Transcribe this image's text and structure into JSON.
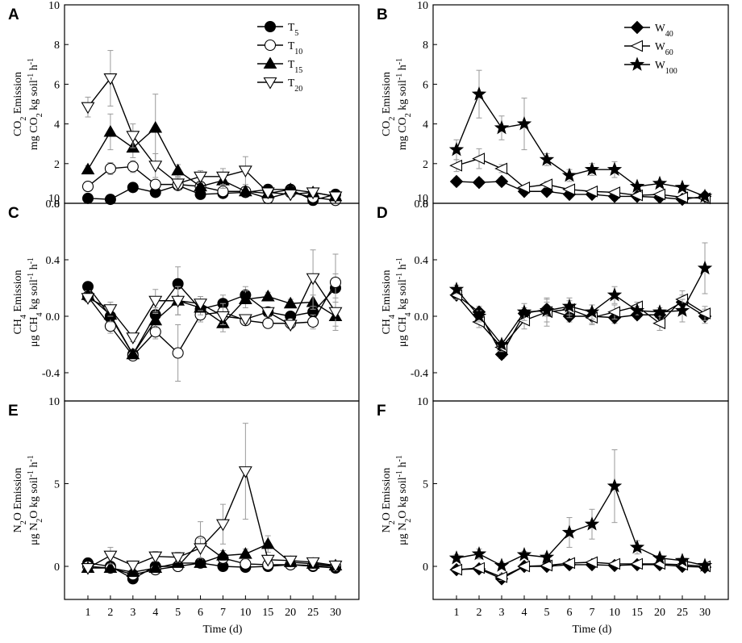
{
  "figure": {
    "xlabel": "Time (d)"
  },
  "chart_data": [
    {
      "panel": "A",
      "type": "line",
      "categories": [
        "1",
        "2",
        "3",
        "4",
        "5",
        "6",
        "7",
        "10",
        "15",
        "20",
        "25",
        "30"
      ],
      "ylim": [
        0,
        10
      ],
      "yticks": [
        0,
        2,
        4,
        6,
        8,
        10
      ],
      "ylabel": {
        "line1": "CO",
        "sub1": "2",
        "line1b": " Emission",
        "line2": "mg CO",
        "sub2": "2",
        "line2b": " kg soil",
        "sup1": "-1",
        "line2c": " h",
        "sup2": "-1"
      },
      "legend": true,
      "series": [
        {
          "name": "T",
          "sub": "5",
          "marker": "circle-filled",
          "values": [
            0.25,
            0.2,
            0.8,
            0.55,
            0.9,
            0.45,
            0.5,
            0.55,
            0.7,
            0.7,
            0.15,
            0.45
          ],
          "errors": [
            0.1,
            0.1,
            0.1,
            0.1,
            0.15,
            0.1,
            0.1,
            0.1,
            0.1,
            0.1,
            0.05,
            0.1
          ]
        },
        {
          "name": "T",
          "sub": "10",
          "marker": "circle-open",
          "values": [
            0.85,
            1.75,
            1.85,
            0.95,
            0.95,
            0.85,
            0.6,
            0.6,
            0.25,
            0.55,
            0.3,
            0.15
          ],
          "errors": [
            0.15,
            0.3,
            0.3,
            0.2,
            0.2,
            0.2,
            0.15,
            0.1,
            0.1,
            0.1,
            0.1,
            0.05
          ]
        },
        {
          "name": "T",
          "sub": "15",
          "marker": "triangle-up-filled",
          "values": [
            1.7,
            3.6,
            2.8,
            3.8,
            1.65,
            0.85,
            1.15,
            0.6,
            0.5,
            0.7,
            0.55,
            0.35
          ],
          "errors": [
            0.2,
            0.9,
            0.5,
            1.7,
            0.3,
            0.2,
            0.4,
            0.2,
            0.1,
            0.15,
            0.1,
            0.1
          ]
        },
        {
          "name": "T",
          "sub": "20",
          "marker": "triangle-down-open",
          "values": [
            4.85,
            6.3,
            3.4,
            1.9,
            1.0,
            1.35,
            1.35,
            1.65,
            0.55,
            0.45,
            0.55,
            0.35
          ],
          "errors": [
            0.5,
            1.4,
            0.6,
            0.6,
            0.3,
            0.3,
            0.4,
            0.7,
            0.1,
            0.1,
            0.1,
            0.1
          ]
        }
      ]
    },
    {
      "panel": "B",
      "type": "line",
      "categories": [
        "1",
        "2",
        "3",
        "4",
        "5",
        "6",
        "7",
        "10",
        "15",
        "20",
        "25",
        "30"
      ],
      "ylim": [
        0,
        10
      ],
      "yticks": [
        0,
        2,
        4,
        6,
        8,
        10
      ],
      "ylabel": {
        "line1": "CO",
        "sub1": "2",
        "line1b": " Emission",
        "line2": "mg CO",
        "sub2": "2",
        "line2b": " kg soil",
        "sup1": "-1",
        "line2c": " h",
        "sup2": "-1"
      },
      "legend": true,
      "series": [
        {
          "name": "W",
          "sub": "40",
          "marker": "diamond-filled",
          "values": [
            1.1,
            1.05,
            1.1,
            0.6,
            0.6,
            0.45,
            0.45,
            0.35,
            0.35,
            0.3,
            0.2,
            0.35
          ],
          "errors": [
            0.2,
            0.2,
            0.2,
            0.1,
            0.1,
            0.1,
            0.1,
            0.1,
            0.1,
            0.1,
            0.05,
            0.1
          ]
        },
        {
          "name": "W",
          "sub": "60",
          "marker": "triangle-left-open",
          "values": [
            1.9,
            2.25,
            1.75,
            0.8,
            0.95,
            0.7,
            0.6,
            0.55,
            0.4,
            0.45,
            0.3,
            0.25
          ],
          "errors": [
            0.3,
            0.5,
            0.2,
            0.1,
            0.15,
            0.1,
            0.1,
            0.1,
            0.1,
            0.1,
            0.05,
            0.05
          ]
        },
        {
          "name": "W",
          "sub": "100",
          "marker": "star-filled",
          "values": [
            2.7,
            5.5,
            3.8,
            4.0,
            2.2,
            1.4,
            1.7,
            1.7,
            0.85,
            1.0,
            0.8,
            0.35
          ],
          "errors": [
            0.5,
            1.2,
            0.6,
            1.3,
            0.3,
            0.3,
            0.3,
            0.4,
            0.1,
            0.15,
            0.1,
            0.1
          ]
        }
      ]
    },
    {
      "panel": "C",
      "type": "line",
      "categories": [
        "1",
        "2",
        "3",
        "4",
        "5",
        "6",
        "7",
        "10",
        "15",
        "20",
        "25",
        "30"
      ],
      "ylim": [
        -0.6,
        0.8
      ],
      "yticks": [
        -0.4,
        0,
        0.4,
        0.8
      ],
      "yticklabels": [
        "-0.4",
        "0.0",
        "0.4",
        "0.8"
      ],
      "topTick": "10",
      "ylabel": {
        "line1": "CH",
        "sub1": "4",
        "line1b": " Emission",
        "line2": "μg CH",
        "sub2": "4",
        "line2b": " kg soil",
        "sup1": "-1",
        "line2c": " h",
        "sup2": "-1"
      },
      "legend": false,
      "series": [
        {
          "name": "T",
          "sub": "5",
          "marker": "circle-filled",
          "values": [
            0.21,
            0.0,
            -0.27,
            0.01,
            0.23,
            0.05,
            0.09,
            0.15,
            0.03,
            0.0,
            0.03,
            0.2
          ],
          "errors": [
            0.03,
            0.05,
            0.03,
            0.05,
            0.12,
            0.05,
            0.06,
            0.06,
            0.03,
            0.03,
            0.05,
            0.1
          ]
        },
        {
          "name": "T",
          "sub": "10",
          "marker": "circle-open",
          "values": [
            0.14,
            -0.07,
            -0.28,
            -0.11,
            -0.26,
            0.01,
            0.03,
            -0.03,
            -0.05,
            -0.05,
            -0.04,
            0.24
          ],
          "errors": [
            0.03,
            0.05,
            0.03,
            0.05,
            0.2,
            0.05,
            0.06,
            0.03,
            0.03,
            0.03,
            0.05,
            0.2
          ]
        },
        {
          "name": "T",
          "sub": "15",
          "marker": "triangle-up-filled",
          "values": [
            0.15,
            0.01,
            -0.27,
            -0.03,
            0.11,
            0.06,
            -0.05,
            0.12,
            0.14,
            0.09,
            0.1,
            0.0
          ],
          "errors": [
            0.03,
            0.05,
            0.03,
            0.05,
            0.1,
            0.05,
            0.06,
            0.06,
            0.03,
            0.03,
            0.05,
            0.1
          ]
        },
        {
          "name": "T",
          "sub": "20",
          "marker": "triangle-down-open",
          "values": [
            0.13,
            0.05,
            -0.15,
            0.11,
            0.11,
            0.09,
            0.0,
            -0.02,
            0.03,
            -0.06,
            0.27,
            0.03
          ],
          "errors": [
            0.03,
            0.05,
            0.03,
            0.08,
            0.1,
            0.05,
            0.06,
            0.03,
            0.03,
            0.03,
            0.2,
            0.1
          ]
        }
      ]
    },
    {
      "panel": "D",
      "type": "line",
      "categories": [
        "1",
        "2",
        "3",
        "4",
        "5",
        "6",
        "7",
        "10",
        "15",
        "20",
        "25",
        "30"
      ],
      "ylim": [
        -0.6,
        0.8
      ],
      "yticks": [
        -0.4,
        0,
        0.4,
        0.8
      ],
      "yticklabels": [
        "-0.4",
        "0.0",
        "0.4",
        "0.8"
      ],
      "topTick": "10",
      "ylabel": {
        "line1": "CH",
        "sub1": "4",
        "line1b": " Emission",
        "line2": "μg CH",
        "sub2": "4",
        "line2b": " kg soil",
        "sup1": "-1",
        "line2c": " h",
        "sup2": "-1"
      },
      "legend": false,
      "series": [
        {
          "name": "W",
          "sub": "40",
          "marker": "diamond-filled",
          "values": [
            0.15,
            0.03,
            -0.27,
            0.02,
            0.05,
            0.0,
            0.0,
            -0.01,
            0.01,
            0.01,
            0.1,
            0.0
          ],
          "errors": [
            0.03,
            0.04,
            0.03,
            0.04,
            0.05,
            0.04,
            0.05,
            0.04,
            0.03,
            0.03,
            0.05,
            0.05
          ]
        },
        {
          "name": "W",
          "sub": "60",
          "marker": "triangle-left-open",
          "values": [
            0.15,
            -0.04,
            -0.22,
            -0.03,
            0.03,
            0.05,
            -0.01,
            0.03,
            0.07,
            -0.05,
            0.12,
            0.02
          ],
          "errors": [
            0.03,
            0.04,
            0.03,
            0.06,
            0.1,
            0.06,
            0.05,
            0.05,
            0.03,
            0.05,
            0.06,
            0.05
          ]
        },
        {
          "name": "W",
          "sub": "100",
          "marker": "star-filled",
          "values": [
            0.19,
            0.0,
            -0.2,
            0.03,
            0.04,
            0.07,
            0.03,
            0.15,
            0.04,
            0.03,
            0.04,
            0.34
          ],
          "errors": [
            0.03,
            0.04,
            0.03,
            0.06,
            0.08,
            0.06,
            0.05,
            0.06,
            0.03,
            0.03,
            0.08,
            0.18
          ]
        }
      ]
    },
    {
      "panel": "E",
      "type": "line",
      "categories": [
        "1",
        "2",
        "3",
        "4",
        "5",
        "6",
        "7",
        "10",
        "15",
        "20",
        "25",
        "30"
      ],
      "ylim": [
        -2,
        10
      ],
      "yticks": [
        0,
        5,
        10
      ],
      "ylabel": {
        "line1": "N",
        "sub1": "2",
        "line1b": "O Emission",
        "line2": "μg N",
        "sub2": "2",
        "line2b": "O kg soil",
        "sup1": "-1",
        "line2c": " h",
        "sup2": "-1"
      },
      "legend": false,
      "series": [
        {
          "name": "T",
          "sub": "5",
          "marker": "circle-filled",
          "values": [
            0.2,
            0.0,
            -0.75,
            0.0,
            0.0,
            0.2,
            0.0,
            -0.05,
            0.0,
            0.1,
            0.0,
            -0.1
          ],
          "errors": [
            0.1,
            0.1,
            0.2,
            0.1,
            0.1,
            0.1,
            0.05,
            0.05,
            0.05,
            0.05,
            0.05,
            0.05
          ]
        },
        {
          "name": "T",
          "sub": "10",
          "marker": "circle-open",
          "values": [
            0.0,
            -0.1,
            -0.5,
            -0.2,
            0.0,
            1.5,
            0.5,
            0.15,
            0.1,
            0.1,
            0.05,
            0.0
          ],
          "errors": [
            0.1,
            0.1,
            0.2,
            0.1,
            0.1,
            1.2,
            0.3,
            0.1,
            0.05,
            0.05,
            0.05,
            0.05
          ]
        },
        {
          "name": "T",
          "sub": "15",
          "marker": "triangle-up-filled",
          "values": [
            -0.1,
            -0.1,
            -0.35,
            -0.1,
            0.2,
            0.2,
            0.65,
            0.75,
            1.35,
            0.25,
            0.15,
            0.05
          ],
          "errors": [
            0.1,
            0.1,
            0.2,
            0.1,
            0.1,
            0.2,
            0.3,
            0.3,
            0.5,
            0.1,
            0.05,
            0.05
          ]
        },
        {
          "name": "T",
          "sub": "20",
          "marker": "triangle-down-open",
          "values": [
            -0.1,
            0.65,
            0.05,
            0.6,
            0.55,
            1.1,
            2.55,
            5.75,
            0.4,
            0.35,
            0.25,
            0.05
          ],
          "errors": [
            0.1,
            0.5,
            0.2,
            0.3,
            0.3,
            0.6,
            1.2,
            2.9,
            0.2,
            0.1,
            0.1,
            0.05
          ]
        }
      ]
    },
    {
      "panel": "F",
      "type": "line",
      "categories": [
        "1",
        "2",
        "3",
        "4",
        "5",
        "6",
        "7",
        "10",
        "15",
        "20",
        "25",
        "30"
      ],
      "ylim": [
        -2,
        10
      ],
      "yticks": [
        0,
        5,
        10
      ],
      "ylabel": {
        "line1": "N",
        "sub1": "2",
        "line1b": "O Emission",
        "line2": "μg N",
        "sub2": "2",
        "line2b": "O kg soil",
        "sup1": "-1",
        "line2c": " h",
        "sup2": "-1"
      },
      "legend": false,
      "series": [
        {
          "name": "W",
          "sub": "40",
          "marker": "diamond-filled",
          "values": [
            -0.2,
            -0.15,
            -0.75,
            0.0,
            0.0,
            0.1,
            0.1,
            0.05,
            0.1,
            0.1,
            0.0,
            -0.05
          ],
          "errors": [
            0.1,
            0.1,
            0.2,
            0.1,
            0.1,
            0.1,
            0.1,
            0.05,
            0.05,
            0.05,
            0.05,
            0.05
          ]
        },
        {
          "name": "W",
          "sub": "60",
          "marker": "triangle-left-open",
          "values": [
            -0.2,
            -0.1,
            -0.65,
            0.0,
            0.05,
            0.2,
            0.25,
            0.15,
            0.15,
            0.15,
            0.1,
            0.0
          ],
          "errors": [
            0.1,
            0.1,
            0.2,
            0.1,
            0.1,
            0.1,
            0.1,
            0.1,
            0.05,
            0.05,
            0.05,
            0.05
          ]
        },
        {
          "name": "W",
          "sub": "100",
          "marker": "star-filled",
          "values": [
            0.5,
            0.75,
            0.05,
            0.7,
            0.55,
            2.05,
            2.55,
            4.85,
            1.15,
            0.5,
            0.35,
            0.05
          ],
          "errors": [
            0.2,
            0.3,
            0.2,
            0.2,
            0.2,
            0.9,
            0.9,
            2.2,
            0.4,
            0.15,
            0.1,
            0.05
          ]
        }
      ]
    }
  ]
}
